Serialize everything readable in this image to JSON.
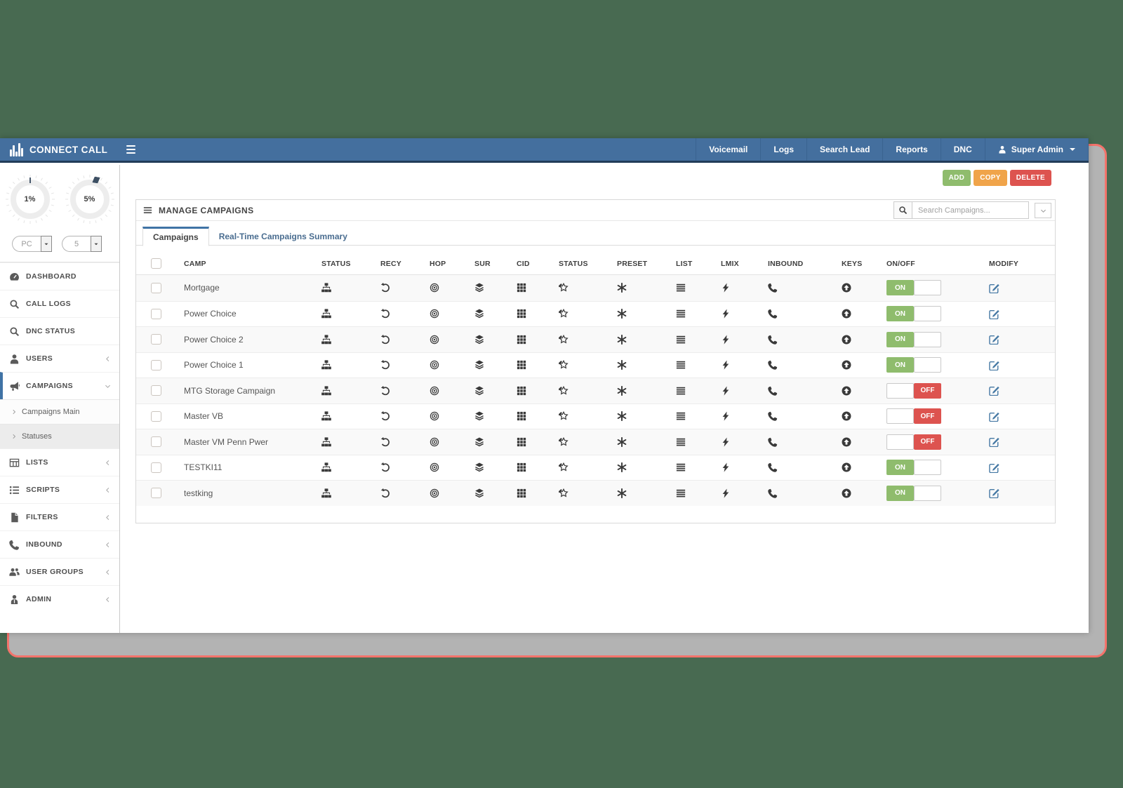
{
  "navbar": {
    "brand": "CONNECT CALL",
    "items": [
      {
        "label": "Voicemail"
      },
      {
        "label": "Logs"
      },
      {
        "label": "Search Lead"
      },
      {
        "label": "Reports"
      },
      {
        "label": "DNC"
      }
    ],
    "user": {
      "label": "Super Admin",
      "icon": "user-icon"
    }
  },
  "sidebar": {
    "gauges": [
      {
        "value": "1%"
      },
      {
        "value": "5%"
      }
    ],
    "selects": [
      {
        "value": "PC"
      },
      {
        "value": "5"
      }
    ],
    "items": [
      {
        "label": "DASHBOARD",
        "icon": "dashboard-icon",
        "chevron": null
      },
      {
        "label": "CALL LOGS",
        "icon": "search-icon",
        "chevron": null
      },
      {
        "label": "DNC STATUS",
        "icon": "search-icon",
        "chevron": null
      },
      {
        "label": "USERS",
        "icon": "user-icon",
        "chevron": "left"
      },
      {
        "label": "CAMPAIGNS",
        "icon": "megaphone-icon",
        "chevron": "down",
        "active": true,
        "children": [
          {
            "label": "Campaigns Main",
            "selected": true
          },
          {
            "label": "Statuses",
            "selected": false
          }
        ]
      },
      {
        "label": "LISTS",
        "icon": "table-icon",
        "chevron": "left"
      },
      {
        "label": "SCRIPTS",
        "icon": "list-ul-icon",
        "chevron": "left"
      },
      {
        "label": "FILTERS",
        "icon": "file-icon",
        "chevron": "left"
      },
      {
        "label": "INBOUND",
        "icon": "phone-icon",
        "chevron": "left"
      },
      {
        "label": "USER GROUPS",
        "icon": "users-icon",
        "chevron": "left"
      },
      {
        "label": "ADMIN",
        "icon": "admin-icon",
        "chevron": "left"
      }
    ]
  },
  "toolbar": {
    "add_label": "ADD",
    "copy_label": "COPY",
    "delete_label": "DELETE"
  },
  "panel": {
    "title": "MANAGE CAMPAIGNS",
    "search_placeholder": "Search Campaigns...",
    "tabs": [
      {
        "label": "Campaigns",
        "active": true
      },
      {
        "label": "Real-Time Campaigns Summary",
        "active": false
      }
    ]
  },
  "table": {
    "columns": [
      {
        "label": "CAMP",
        "type": "text"
      },
      {
        "label": "STATUS",
        "type": "icon",
        "icon": "sitemap-icon"
      },
      {
        "label": "RECY",
        "type": "icon",
        "icon": "rotate-left-icon"
      },
      {
        "label": "HOP",
        "type": "icon",
        "icon": "bullseye-icon"
      },
      {
        "label": "SUR",
        "type": "icon",
        "icon": "layers-icon"
      },
      {
        "label": "CID",
        "type": "icon",
        "icon": "grid-icon"
      },
      {
        "label": "STATUS",
        "type": "icon",
        "icon": "star-edit-icon"
      },
      {
        "label": "PRESET",
        "type": "icon",
        "icon": "asterisk-icon"
      },
      {
        "label": "LIST",
        "type": "icon",
        "icon": "list-icon"
      },
      {
        "label": "LMIX",
        "type": "icon",
        "icon": "bolt-icon"
      },
      {
        "label": "INBOUND",
        "type": "icon",
        "icon": "phone-icon"
      },
      {
        "label": "KEYS",
        "type": "icon",
        "icon": "arrow-circle-up-icon"
      },
      {
        "label": "ON/OFF",
        "type": "toggle"
      },
      {
        "label": "MODIFY",
        "type": "action",
        "icon": "edit-icon"
      }
    ],
    "toggle_on_label": "ON",
    "toggle_off_label": "OFF",
    "rows": [
      {
        "name": "Mortgage",
        "state": "ON"
      },
      {
        "name": "Power Choice",
        "state": "ON"
      },
      {
        "name": "Power Choice 2",
        "state": "ON"
      },
      {
        "name": "Power Choice 1",
        "state": "ON"
      },
      {
        "name": "MTG Storage Campaign",
        "state": "OFF"
      },
      {
        "name": "Master VB",
        "state": "OFF"
      },
      {
        "name": "Master VM Penn Pwer",
        "state": "OFF"
      },
      {
        "name": "TESTKI11",
        "state": "ON"
      },
      {
        "name": "testking",
        "state": "ON"
      }
    ]
  },
  "colors": {
    "accent_blue": "#4073a5",
    "navbar_blue": "#446f9e",
    "green": "#8fbc6d",
    "orange": "#f0a44a",
    "red": "#dd534f",
    "frame_red": "#f3736b",
    "desktop_green": "#486a51"
  }
}
